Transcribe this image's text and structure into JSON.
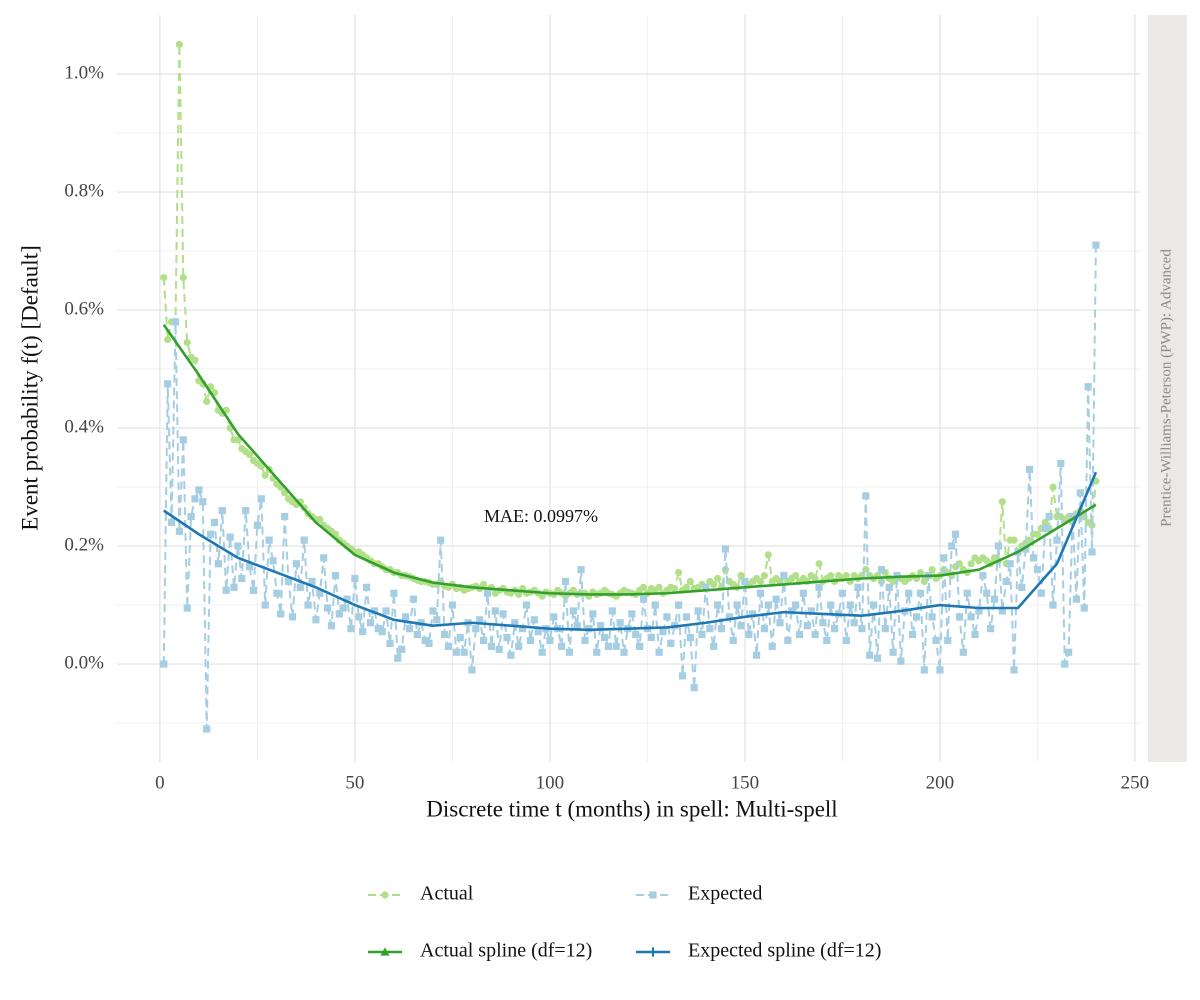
{
  "chart_data": {
    "type": "line",
    "y_label": "Event probability f(t) [Default]",
    "x_label": "Discrete time t (months) in spell: Multi-spell",
    "facet_label": "Prentice-Williams-Peterson (PWP): Advanced",
    "annotation": "MAE: 0.0997%",
    "xlim": [
      -11,
      251.3
    ],
    "ylim": [
      -0.166,
      1.1
    ],
    "xticks": [
      0,
      50,
      100,
      150,
      200,
      250
    ],
    "xminor": [
      25,
      75,
      125,
      175,
      225
    ],
    "yticks": [
      {
        "value": 0,
        "label": "0.0%"
      },
      {
        "value": 0.2,
        "label": "0.2%"
      },
      {
        "value": 0.4,
        "label": "0.4%"
      },
      {
        "value": 0.6,
        "label": "0.6%"
      },
      {
        "value": 0.8,
        "label": "0.8%"
      },
      {
        "value": 1.0,
        "label": "1.0%"
      }
    ],
    "yminor": [
      -0.1,
      0.1,
      0.3,
      0.5,
      0.7,
      0.9
    ],
    "grid": true,
    "legend": "bottom",
    "x": [
      1,
      2,
      3,
      4,
      5,
      6,
      7,
      8,
      9,
      10,
      11,
      12,
      13,
      14,
      15,
      16,
      17,
      18,
      19,
      20,
      21,
      22,
      23,
      24,
      25,
      26,
      27,
      28,
      29,
      30,
      31,
      32,
      33,
      34,
      35,
      36,
      37,
      38,
      39,
      40,
      41,
      42,
      43,
      44,
      45,
      46,
      47,
      48,
      49,
      50,
      51,
      52,
      53,
      54,
      55,
      56,
      57,
      58,
      59,
      60,
      61,
      62,
      63,
      64,
      65,
      66,
      67,
      68,
      69,
      70,
      71,
      72,
      73,
      74,
      75,
      76,
      77,
      78,
      79,
      80,
      81,
      82,
      83,
      84,
      85,
      86,
      87,
      88,
      89,
      90,
      91,
      92,
      93,
      94,
      95,
      96,
      97,
      98,
      99,
      100,
      101,
      102,
      103,
      104,
      105,
      106,
      107,
      108,
      109,
      110,
      111,
      112,
      113,
      114,
      115,
      116,
      117,
      118,
      119,
      120,
      121,
      122,
      123,
      124,
      125,
      126,
      127,
      128,
      129,
      130,
      131,
      132,
      133,
      134,
      135,
      136,
      137,
      138,
      139,
      140,
      141,
      142,
      143,
      144,
      145,
      146,
      147,
      148,
      149,
      150,
      151,
      152,
      153,
      154,
      155,
      156,
      157,
      158,
      159,
      160,
      161,
      162,
      163,
      164,
      165,
      166,
      167,
      168,
      169,
      170,
      171,
      172,
      173,
      174,
      175,
      176,
      177,
      178,
      179,
      180,
      181,
      182,
      183,
      184,
      185,
      186,
      187,
      188,
      189,
      190,
      191,
      192,
      193,
      194,
      195,
      196,
      197,
      198,
      199,
      200,
      201,
      202,
      203,
      204,
      205,
      206,
      207,
      208,
      209,
      210,
      211,
      212,
      213,
      214,
      215,
      216,
      217,
      218,
      219,
      220,
      221,
      222,
      223,
      224,
      225,
      226,
      227,
      228,
      229,
      230,
      231,
      232,
      233,
      234,
      235,
      236,
      237,
      238,
      239,
      240
    ],
    "series": [
      {
        "name": "Actual",
        "color": "#b2df8a",
        "linestyle": "dashed",
        "marker": "circle",
        "values": [
          0.655,
          0.55,
          0.58,
          0.58,
          1.05,
          0.655,
          0.545,
          0.52,
          0.515,
          0.48,
          0.475,
          0.445,
          0.47,
          0.46,
          0.43,
          0.425,
          0.43,
          0.4,
          0.38,
          0.38,
          0.365,
          0.36,
          0.355,
          0.345,
          0.34,
          0.335,
          0.32,
          0.33,
          0.315,
          0.305,
          0.3,
          0.29,
          0.28,
          0.275,
          0.27,
          0.275,
          0.265,
          0.255,
          0.25,
          0.245,
          0.245,
          0.235,
          0.23,
          0.225,
          0.22,
          0.21,
          0.205,
          0.2,
          0.195,
          0.19,
          0.19,
          0.185,
          0.18,
          0.175,
          0.17,
          0.17,
          0.165,
          0.16,
          0.16,
          0.155,
          0.155,
          0.15,
          0.15,
          0.148,
          0.145,
          0.142,
          0.14,
          0.14,
          0.138,
          0.135,
          0.135,
          0.14,
          0.132,
          0.13,
          0.135,
          0.128,
          0.13,
          0.125,
          0.128,
          0.13,
          0.132,
          0.128,
          0.135,
          0.125,
          0.13,
          0.12,
          0.125,
          0.128,
          0.122,
          0.12,
          0.125,
          0.118,
          0.128,
          0.12,
          0.122,
          0.125,
          0.12,
          0.115,
          0.122,
          0.12,
          0.118,
          0.125,
          0.12,
          0.115,
          0.12,
          0.125,
          0.118,
          0.12,
          0.12,
          0.115,
          0.122,
          0.118,
          0.12,
          0.125,
          0.12,
          0.118,
          0.115,
          0.12,
          0.125,
          0.122,
          0.12,
          0.118,
          0.125,
          0.13,
          0.12,
          0.128,
          0.125,
          0.13,
          0.12,
          0.125,
          0.13,
          0.128,
          0.155,
          0.125,
          0.13,
          0.14,
          0.128,
          0.13,
          0.135,
          0.13,
          0.14,
          0.135,
          0.145,
          0.13,
          0.16,
          0.14,
          0.135,
          0.13,
          0.15,
          0.14,
          0.135,
          0.14,
          0.145,
          0.14,
          0.15,
          0.185,
          0.14,
          0.145,
          0.14,
          0.15,
          0.14,
          0.145,
          0.15,
          0.14,
          0.145,
          0.14,
          0.15,
          0.145,
          0.17,
          0.14,
          0.145,
          0.15,
          0.14,
          0.15,
          0.145,
          0.15,
          0.14,
          0.15,
          0.145,
          0.15,
          0.16,
          0.15,
          0.145,
          0.15,
          0.14,
          0.155,
          0.145,
          0.14,
          0.15,
          0.145,
          0.14,
          0.145,
          0.15,
          0.145,
          0.155,
          0.14,
          0.15,
          0.16,
          0.145,
          0.15,
          0.16,
          0.155,
          0.15,
          0.165,
          0.17,
          0.16,
          0.155,
          0.17,
          0.18,
          0.175,
          0.18,
          0.175,
          0.17,
          0.18,
          0.175,
          0.275,
          0.17,
          0.21,
          0.21,
          0.19,
          0.2,
          0.205,
          0.21,
          0.22,
          0.22,
          0.23,
          0.24,
          0.23,
          0.3,
          0.25,
          0.25,
          0.245,
          0.25,
          0.24,
          0.255,
          0.26,
          0.25,
          0.24,
          0.235,
          0.31
        ]
      },
      {
        "name": "Expected",
        "color": "#a6cee3",
        "linestyle": "dashed",
        "marker": "square",
        "values": [
          0.0,
          0.475,
          0.24,
          0.58,
          0.225,
          0.38,
          0.095,
          0.25,
          0.28,
          0.295,
          0.275,
          -0.11,
          0.22,
          0.24,
          0.17,
          0.26,
          0.125,
          0.215,
          0.13,
          0.2,
          0.145,
          0.26,
          0.165,
          0.125,
          0.235,
          0.28,
          0.1,
          0.21,
          0.175,
          0.12,
          0.085,
          0.25,
          0.14,
          0.08,
          0.17,
          0.13,
          0.21,
          0.1,
          0.14,
          0.075,
          0.12,
          0.18,
          0.095,
          0.065,
          0.15,
          0.085,
          0.095,
          0.11,
          0.06,
          0.145,
          0.08,
          0.055,
          0.13,
          0.07,
          0.09,
          0.06,
          0.055,
          0.09,
          0.035,
          0.12,
          0.01,
          0.025,
          0.08,
          0.06,
          0.11,
          0.05,
          0.07,
          0.04,
          0.035,
          0.09,
          0.075,
          0.21,
          0.05,
          0.03,
          0.1,
          0.02,
          0.045,
          0.02,
          0.07,
          -0.01,
          0.06,
          0.075,
          0.04,
          0.12,
          0.03,
          0.09,
          0.025,
          0.085,
          0.045,
          0.015,
          0.07,
          0.03,
          0.06,
          0.1,
          0.04,
          0.075,
          0.055,
          0.02,
          0.06,
          0.04,
          0.08,
          0.06,
          0.03,
          0.14,
          0.02,
          0.09,
          0.065,
          0.16,
          0.04,
          0.06,
          0.085,
          0.02,
          0.065,
          0.045,
          0.03,
          0.09,
          0.03,
          0.07,
          0.02,
          0.06,
          0.085,
          0.05,
          0.03,
          0.11,
          0.06,
          0.045,
          0.1,
          0.02,
          0.055,
          0.08,
          0.035,
          0.065,
          0.1,
          -0.02,
          0.08,
          0.045,
          -0.04,
          0.09,
          0.05,
          0.13,
          0.06,
          0.03,
          0.1,
          0.06,
          0.195,
          0.08,
          0.04,
          0.1,
          0.065,
          0.14,
          0.05,
          0.085,
          0.015,
          0.12,
          0.06,
          0.1,
          0.03,
          0.11,
          0.07,
          0.15,
          0.04,
          0.09,
          0.1,
          0.05,
          0.12,
          0.065,
          0.09,
          0.05,
          0.13,
          0.07,
          0.04,
          0.1,
          0.06,
          0.085,
          0.12,
          0.04,
          0.1,
          0.07,
          0.13,
          0.06,
          0.285,
          0.015,
          0.1,
          0.01,
          0.16,
          0.06,
          0.13,
          0.02,
          0.15,
          0.005,
          0.09,
          0.12,
          0.05,
          0.08,
          0.12,
          -0.01,
          0.15,
          0.08,
          0.04,
          -0.01,
          0.18,
          0.04,
          0.2,
          0.22,
          0.08,
          0.02,
          0.12,
          0.08,
          0.05,
          0.09,
          0.15,
          0.12,
          0.06,
          0.11,
          0.2,
          0.09,
          0.14,
          0.17,
          -0.01,
          0.19,
          0.13,
          0.195,
          0.33,
          0.18,
          0.16,
          0.12,
          0.23,
          0.25,
          0.1,
          0.21,
          0.34,
          0.0,
          0.02,
          0.25,
          0.11,
          0.29,
          0.095,
          0.47,
          0.19,
          0.71
        ]
      },
      {
        "name": "Actual spline (df=12)",
        "color": "#33a02c",
        "linestyle": "solid",
        "marker": "triangle",
        "x": [
          1,
          10,
          20,
          30,
          40,
          50,
          60,
          70,
          80,
          90,
          100,
          110,
          120,
          130,
          140,
          150,
          160,
          170,
          180,
          190,
          200,
          210,
          220,
          230,
          240
        ],
        "values": [
          0.575,
          0.49,
          0.39,
          0.315,
          0.24,
          0.185,
          0.155,
          0.138,
          0.13,
          0.125,
          0.12,
          0.118,
          0.118,
          0.12,
          0.125,
          0.13,
          0.135,
          0.14,
          0.145,
          0.148,
          0.15,
          0.16,
          0.19,
          0.23,
          0.27
        ]
      },
      {
        "name": "Expected spline (df=12)",
        "color": "#1f78b4",
        "linestyle": "solid",
        "marker": "plus",
        "x": [
          1,
          10,
          20,
          30,
          40,
          50,
          60,
          70,
          80,
          90,
          100,
          110,
          120,
          130,
          140,
          150,
          160,
          170,
          180,
          190,
          200,
          210,
          220,
          230,
          240
        ],
        "values": [
          0.26,
          0.22,
          0.18,
          0.155,
          0.13,
          0.1,
          0.075,
          0.065,
          0.07,
          0.065,
          0.06,
          0.058,
          0.06,
          0.062,
          0.07,
          0.08,
          0.088,
          0.085,
          0.082,
          0.09,
          0.1,
          0.095,
          0.095,
          0.17,
          0.325
        ]
      }
    ]
  }
}
